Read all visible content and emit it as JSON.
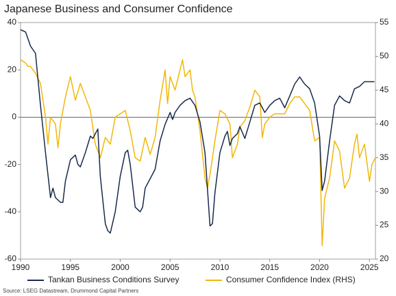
{
  "chart_data": {
    "type": "line",
    "title": "Japanese Business and Consumer Confidence",
    "source": "Source: LSEG Datastream, Drummond Capital Partners",
    "xlim": [
      1990,
      2025.6
    ],
    "xticks": [
      1990,
      1995,
      2000,
      2005,
      2010,
      2015,
      2020,
      2025
    ],
    "ylim": [
      -60,
      40
    ],
    "yticks": [
      -60,
      -40,
      -20,
      0,
      20,
      40
    ],
    "y2lim": [
      20,
      55
    ],
    "y2ticks": [
      20,
      25,
      30,
      35,
      40,
      45,
      50,
      55
    ],
    "hline": 0,
    "legend": "bottom",
    "series": [
      {
        "name": "Tankan Business Conditions Survey",
        "color": "#17294a",
        "x": [
          1990,
          1990.5,
          1991,
          1991.5,
          1992,
          1992.5,
          1993,
          1993.25,
          1993.5,
          1994,
          1994.25,
          1994.5,
          1995,
          1995.5,
          1995.75,
          1996,
          1996.5,
          1997,
          1997.25,
          1997.75,
          1998,
          1998.5,
          1998.75,
          1999,
          1999.5,
          2000,
          2000.5,
          2000.75,
          2001,
          2001.5,
          2002,
          2002.25,
          2002.5,
          2003,
          2003.5,
          2004,
          2004.5,
          2005,
          2005.25,
          2005.5,
          2006,
          2006.5,
          2007,
          2007.5,
          2008,
          2008.5,
          2009,
          2009.25,
          2009.5,
          2010,
          2010.5,
          2010.75,
          2011,
          2011.25,
          2011.75,
          2012,
          2012.5,
          2013,
          2013.5,
          2014,
          2014.5,
          2015,
          2015.5,
          2016,
          2016.5,
          2017,
          2017.5,
          2018,
          2018.5,
          2019,
          2019.5,
          2020,
          2020.25,
          2020.5,
          2021,
          2021.5,
          2022,
          2022.5,
          2023,
          2023.5,
          2024,
          2024.5,
          2025,
          2025.5
        ],
        "values": [
          37,
          36,
          30,
          27,
          5,
          -15,
          -34,
          -30,
          -34,
          -36,
          -36,
          -27,
          -18,
          -16,
          -20,
          -21,
          -15,
          -8,
          -9,
          -5,
          -25,
          -45,
          -48,
          -49,
          -40,
          -25,
          -15,
          -14,
          -20,
          -38,
          -40,
          -38,
          -30,
          -26,
          -22,
          -10,
          -3,
          2,
          -1,
          2,
          5,
          7,
          8,
          5,
          -2,
          -15,
          -46,
          -45,
          -32,
          -15,
          -8,
          -6,
          -12,
          -9,
          -7,
          -4,
          -9,
          -2,
          5,
          6,
          2,
          5,
          7,
          8,
          4,
          9,
          14,
          17,
          14,
          12,
          6,
          -8,
          -31,
          -27,
          -10,
          5,
          9,
          7,
          6,
          12,
          13,
          15,
          15,
          15
        ]
      },
      {
        "name": "Consumer Confidence Index (RHS)",
        "color": "#f2b705",
        "axis": "y2",
        "x": [
          1990,
          1990.5,
          1990.75,
          1991,
          1991.5,
          1992,
          1992.5,
          1992.75,
          1993,
          1993.5,
          1993.75,
          1994,
          1994.5,
          1995,
          1995.5,
          1996,
          1996.5,
          1997,
          1997.5,
          1998,
          1998.5,
          1999,
          1999.5,
          2000,
          2000.5,
          2001,
          2001.5,
          2002,
          2002.5,
          2003,
          2003.5,
          2004,
          2004.5,
          2004.75,
          2005,
          2005.5,
          2006,
          2006.25,
          2006.5,
          2007,
          2007.25,
          2007.5,
          2008,
          2008.5,
          2008.75,
          2009,
          2009.5,
          2010,
          2010.5,
          2011,
          2011.25,
          2011.75,
          2012,
          2012.5,
          2013,
          2013.5,
          2014,
          2014.25,
          2014.5,
          2015,
          2015.5,
          2016,
          2016.5,
          2017,
          2017.5,
          2018,
          2018.5,
          2019,
          2019.5,
          2020,
          2020.25,
          2020.5,
          2021,
          2021.5,
          2022,
          2022.5,
          2023,
          2023.5,
          2023.75,
          2024,
          2024.5,
          2025,
          2025.25,
          2025.6
        ],
        "values": [
          49.5,
          49,
          48.5,
          48.5,
          47.5,
          46,
          41,
          37,
          41,
          40,
          36.5,
          40,
          44,
          47,
          43.5,
          46,
          44,
          42,
          37,
          35,
          38,
          37,
          41,
          41.5,
          42,
          39,
          35,
          34.5,
          38,
          35.5,
          38,
          43.5,
          48,
          43,
          47,
          45,
          48,
          49.5,
          47,
          48,
          45,
          44,
          39,
          32,
          30.5,
          32.5,
          37.5,
          42,
          41.5,
          40,
          35,
          37,
          39.5,
          40.5,
          42.5,
          45,
          44,
          38,
          40,
          41,
          41.5,
          41.5,
          41.5,
          43,
          44,
          44,
          43,
          42,
          37.5,
          38,
          22,
          29,
          32,
          37.5,
          36,
          30.5,
          32,
          37,
          38.5,
          35,
          37,
          31.5,
          34,
          35
        ]
      }
    ]
  }
}
